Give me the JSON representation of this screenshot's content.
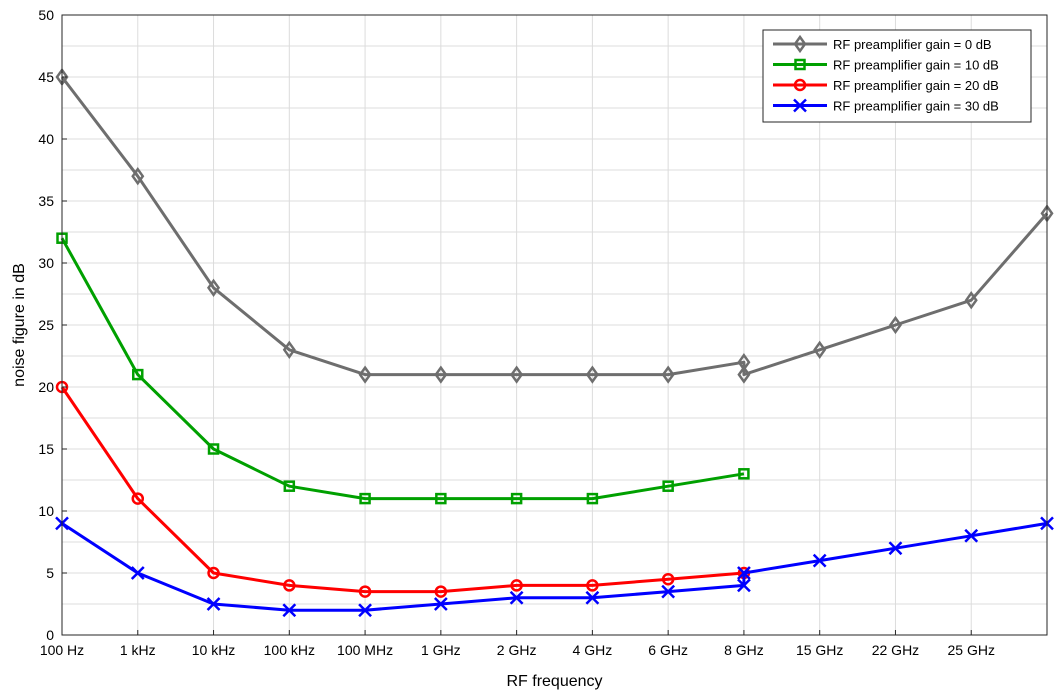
{
  "chart_data": {
    "type": "line",
    "xlabel": "RF frequency",
    "ylabel": "noise figure in dB",
    "categories": [
      "100 Hz",
      "1 kHz",
      "10 kHz",
      "100 kHz",
      "100 MHz",
      "1 GHz",
      "2 GHz",
      "4 GHz",
      "6 GHz",
      "8 GHz",
      "15 GHz",
      "22 GHz",
      "25 GHz"
    ],
    "ylim": [
      0,
      50
    ],
    "yticks": [
      0,
      5,
      10,
      15,
      20,
      25,
      30,
      35,
      40,
      45,
      50
    ],
    "grid": true,
    "legend_position": "top-right",
    "series": [
      {
        "name": "RF preamplifier gain = 0 dB",
        "color": "#6e6e6e",
        "marker": "diamond",
        "points": [
          {
            "x": "100 Hz",
            "y": 45
          },
          {
            "x": "1 kHz",
            "y": 37
          },
          {
            "x": "10 kHz",
            "y": 28
          },
          {
            "x": "100 kHz",
            "y": 23
          },
          {
            "x": "100 MHz",
            "y": 21
          },
          {
            "x": "1 GHz",
            "y": 21
          },
          {
            "x": "2 GHz",
            "y": 21
          },
          {
            "x": "4 GHz",
            "y": 21
          },
          {
            "x": "6 GHz",
            "y": 21
          },
          {
            "x": "8 GHz",
            "y": 22
          },
          {
            "x": "8 GHz",
            "y": 21
          },
          {
            "x": "15 GHz",
            "y": 23
          },
          {
            "x": "22 GHz",
            "y": 25
          },
          {
            "x": "25 GHz",
            "y": 27
          },
          {
            "x": "26.5 GHz",
            "y": 34
          }
        ]
      },
      {
        "name": "RF preamplifier gain = 10 dB",
        "color": "#00a000",
        "marker": "square",
        "points": [
          {
            "x": "100 Hz",
            "y": 32
          },
          {
            "x": "1 kHz",
            "y": 21
          },
          {
            "x": "10 kHz",
            "y": 15
          },
          {
            "x": "100 kHz",
            "y": 12
          },
          {
            "x": "100 MHz",
            "y": 11
          },
          {
            "x": "1 GHz",
            "y": 11
          },
          {
            "x": "2 GHz",
            "y": 11
          },
          {
            "x": "4 GHz",
            "y": 11
          },
          {
            "x": "6 GHz",
            "y": 12
          },
          {
            "x": "8 GHz",
            "y": 13
          }
        ]
      },
      {
        "name": "RF preamplifier gain = 20 dB",
        "color": "#ff0000",
        "marker": "circle",
        "points": [
          {
            "x": "100 Hz",
            "y": 20
          },
          {
            "x": "1 kHz",
            "y": 11
          },
          {
            "x": "10 kHz",
            "y": 5
          },
          {
            "x": "100 kHz",
            "y": 4
          },
          {
            "x": "100 MHz",
            "y": 3.5
          },
          {
            "x": "1 GHz",
            "y": 3.5
          },
          {
            "x": "2 GHz",
            "y": 4
          },
          {
            "x": "4 GHz",
            "y": 4
          },
          {
            "x": "6 GHz",
            "y": 4.5
          },
          {
            "x": "8 GHz",
            "y": 5
          }
        ]
      },
      {
        "name": "RF preamplifier gain = 30 dB",
        "color": "#0000ff",
        "marker": "x",
        "points": [
          {
            "x": "100 Hz",
            "y": 9
          },
          {
            "x": "1 kHz",
            "y": 5
          },
          {
            "x": "10 kHz",
            "y": 2.5
          },
          {
            "x": "100 kHz",
            "y": 2
          },
          {
            "x": "100 MHz",
            "y": 2
          },
          {
            "x": "1 GHz",
            "y": 2.5
          },
          {
            "x": "2 GHz",
            "y": 3
          },
          {
            "x": "4 GHz",
            "y": 3
          },
          {
            "x": "6 GHz",
            "y": 3.5
          },
          {
            "x": "8 GHz",
            "y": 4
          },
          {
            "x": "8 GHz",
            "y": 5
          },
          {
            "x": "15 GHz",
            "y": 6
          },
          {
            "x": "22 GHz",
            "y": 7
          },
          {
            "x": "25 GHz",
            "y": 8
          },
          {
            "x": "26.5 GHz",
            "y": 9
          }
        ]
      }
    ]
  }
}
